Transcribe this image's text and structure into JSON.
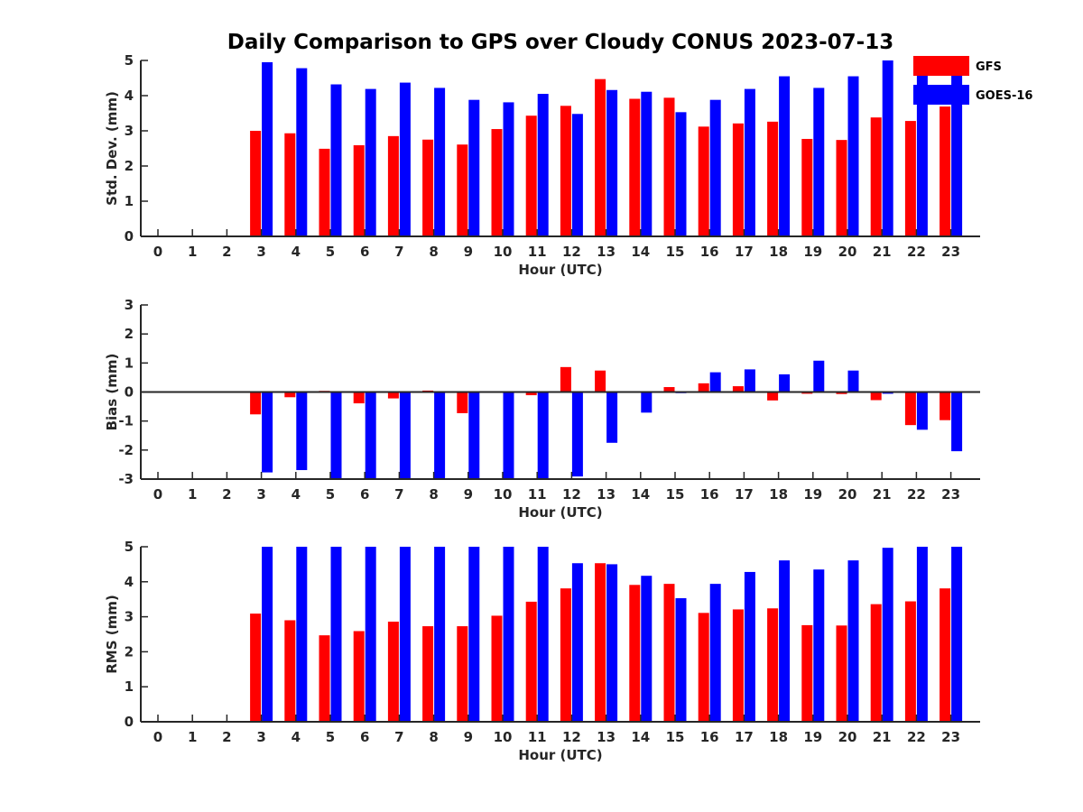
{
  "title": "Daily Comparison to GPS over Cloudy CONUS 2023-07-13",
  "colors": {
    "GFS": "#ff0000",
    "GOES-16": "#0000ff",
    "axis": "#262626"
  },
  "legend": [
    {
      "name": "GFS",
      "color": "#ff0000"
    },
    {
      "name": "GOES-16",
      "color": "#0000ff"
    }
  ],
  "chart_data": [
    {
      "type": "bar",
      "xlabel": "Hour (UTC)",
      "ylabel": "Std. Dev. (mm)",
      "ylim": [
        0,
        5
      ],
      "yticks": [
        0,
        1,
        2,
        3,
        4,
        5
      ],
      "categories": [
        "0",
        "1",
        "2",
        "3",
        "4",
        "5",
        "6",
        "7",
        "8",
        "9",
        "10",
        "11",
        "12",
        "13",
        "14",
        "15",
        "16",
        "17",
        "18",
        "19",
        "20",
        "21",
        "22",
        "23"
      ],
      "series": [
        {
          "name": "GFS",
          "values": [
            null,
            null,
            null,
            3.0,
            2.93,
            2.49,
            2.59,
            2.85,
            2.75,
            2.61,
            3.05,
            3.43,
            3.71,
            4.47,
            3.91,
            3.94,
            3.12,
            3.21,
            3.26,
            2.77,
            2.74,
            3.38,
            3.28,
            3.69
          ]
        },
        {
          "name": "GOES-16",
          "values": [
            null,
            null,
            null,
            4.95,
            4.78,
            4.32,
            4.19,
            4.37,
            4.22,
            3.88,
            3.81,
            4.05,
            3.48,
            4.16,
            4.11,
            3.53,
            3.88,
            4.19,
            4.55,
            4.22,
            4.55,
            5.0,
            5.0,
            5.0
          ]
        }
      ]
    },
    {
      "type": "bar",
      "xlabel": "Hour (UTC)",
      "ylabel": "Bias (mm)",
      "ylim": [
        -3,
        3
      ],
      "yticks": [
        -3,
        -2,
        -1,
        0,
        1,
        2,
        3
      ],
      "categories": [
        "0",
        "1",
        "2",
        "3",
        "4",
        "5",
        "6",
        "7",
        "8",
        "9",
        "10",
        "11",
        "12",
        "13",
        "14",
        "15",
        "16",
        "17",
        "18",
        "19",
        "20",
        "21",
        "22",
        "23"
      ],
      "series": [
        {
          "name": "GFS",
          "values": [
            null,
            null,
            null,
            -0.77,
            -0.18,
            0.04,
            -0.39,
            -0.22,
            0.05,
            -0.73,
            0.0,
            -0.11,
            0.86,
            0.74,
            0.0,
            0.17,
            0.3,
            0.2,
            -0.29,
            -0.06,
            -0.07,
            -0.28,
            -1.14,
            -0.97
          ]
        },
        {
          "name": "GOES-16",
          "values": [
            null,
            null,
            null,
            -2.77,
            -2.69,
            -3.0,
            -3.0,
            -3.0,
            -3.0,
            -3.0,
            -3.0,
            -3.0,
            -2.91,
            -1.75,
            -0.71,
            -0.04,
            0.68,
            0.78,
            0.61,
            1.08,
            0.74,
            -0.06,
            -1.3,
            -2.04
          ]
        }
      ]
    },
    {
      "type": "bar",
      "xlabel": "Hour (UTC)",
      "ylabel": "RMS (mm)",
      "ylim": [
        0,
        5
      ],
      "yticks": [
        0,
        1,
        2,
        3,
        4,
        5
      ],
      "categories": [
        "0",
        "1",
        "2",
        "3",
        "4",
        "5",
        "6",
        "7",
        "8",
        "9",
        "10",
        "11",
        "12",
        "13",
        "14",
        "15",
        "16",
        "17",
        "18",
        "19",
        "20",
        "21",
        "22",
        "23"
      ],
      "series": [
        {
          "name": "GFS",
          "values": [
            null,
            null,
            null,
            3.09,
            2.9,
            2.47,
            2.59,
            2.86,
            2.73,
            2.73,
            3.03,
            3.43,
            3.81,
            4.53,
            3.91,
            3.94,
            3.11,
            3.21,
            3.24,
            2.76,
            2.75,
            3.36,
            3.44,
            3.81
          ]
        },
        {
          "name": "GOES-16",
          "values": [
            null,
            null,
            null,
            5.0,
            5.0,
            5.0,
            5.0,
            5.0,
            5.0,
            5.0,
            5.0,
            5.0,
            4.53,
            4.5,
            4.17,
            3.53,
            3.94,
            4.28,
            4.61,
            4.35,
            4.61,
            4.97,
            5.0,
            5.0
          ]
        }
      ]
    }
  ]
}
